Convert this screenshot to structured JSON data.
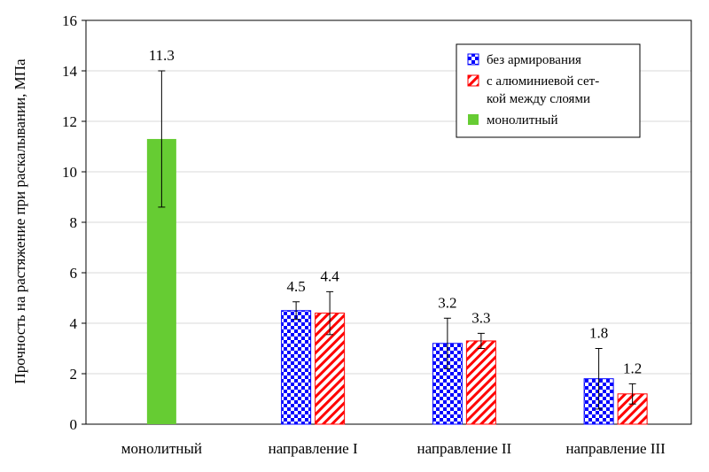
{
  "chart_data": {
    "type": "bar",
    "title": "",
    "xlabel": "",
    "ylabel": "Прочность на растяжение при раскалывании, МПа",
    "ylim": [
      0,
      16
    ],
    "yticks": [
      0,
      2,
      4,
      6,
      8,
      10,
      12,
      14,
      16
    ],
    "grid": true,
    "legend_position": "top-right",
    "categories": [
      "монолитный",
      "направление I",
      "направление II",
      "направление III"
    ],
    "series": [
      {
        "name": "без армирования",
        "color": "#0000ff",
        "pattern": "checker",
        "values": [
          null,
          4.5,
          3.2,
          1.8
        ],
        "labels": [
          "",
          "4.5",
          "3.2",
          "1.8"
        ],
        "errors": [
          null,
          0.35,
          1.0,
          1.2
        ]
      },
      {
        "name_lines": [
          "с алюминиевой сет-",
          "кой между слоями"
        ],
        "color": "#ff0000",
        "pattern": "diagonal-hatch",
        "values": [
          null,
          4.4,
          3.3,
          1.2
        ],
        "labels": [
          "",
          "4.4",
          "3.3",
          "1.2"
        ],
        "errors": [
          null,
          0.85,
          0.3,
          0.4
        ]
      },
      {
        "name": "монолитный",
        "color": "#66cc33",
        "pattern": "solid",
        "values": [
          11.3,
          null,
          null,
          null
        ],
        "labels": [
          "11.3",
          "",
          "",
          ""
        ],
        "errors": [
          2.7,
          null,
          null,
          null
        ]
      }
    ]
  }
}
